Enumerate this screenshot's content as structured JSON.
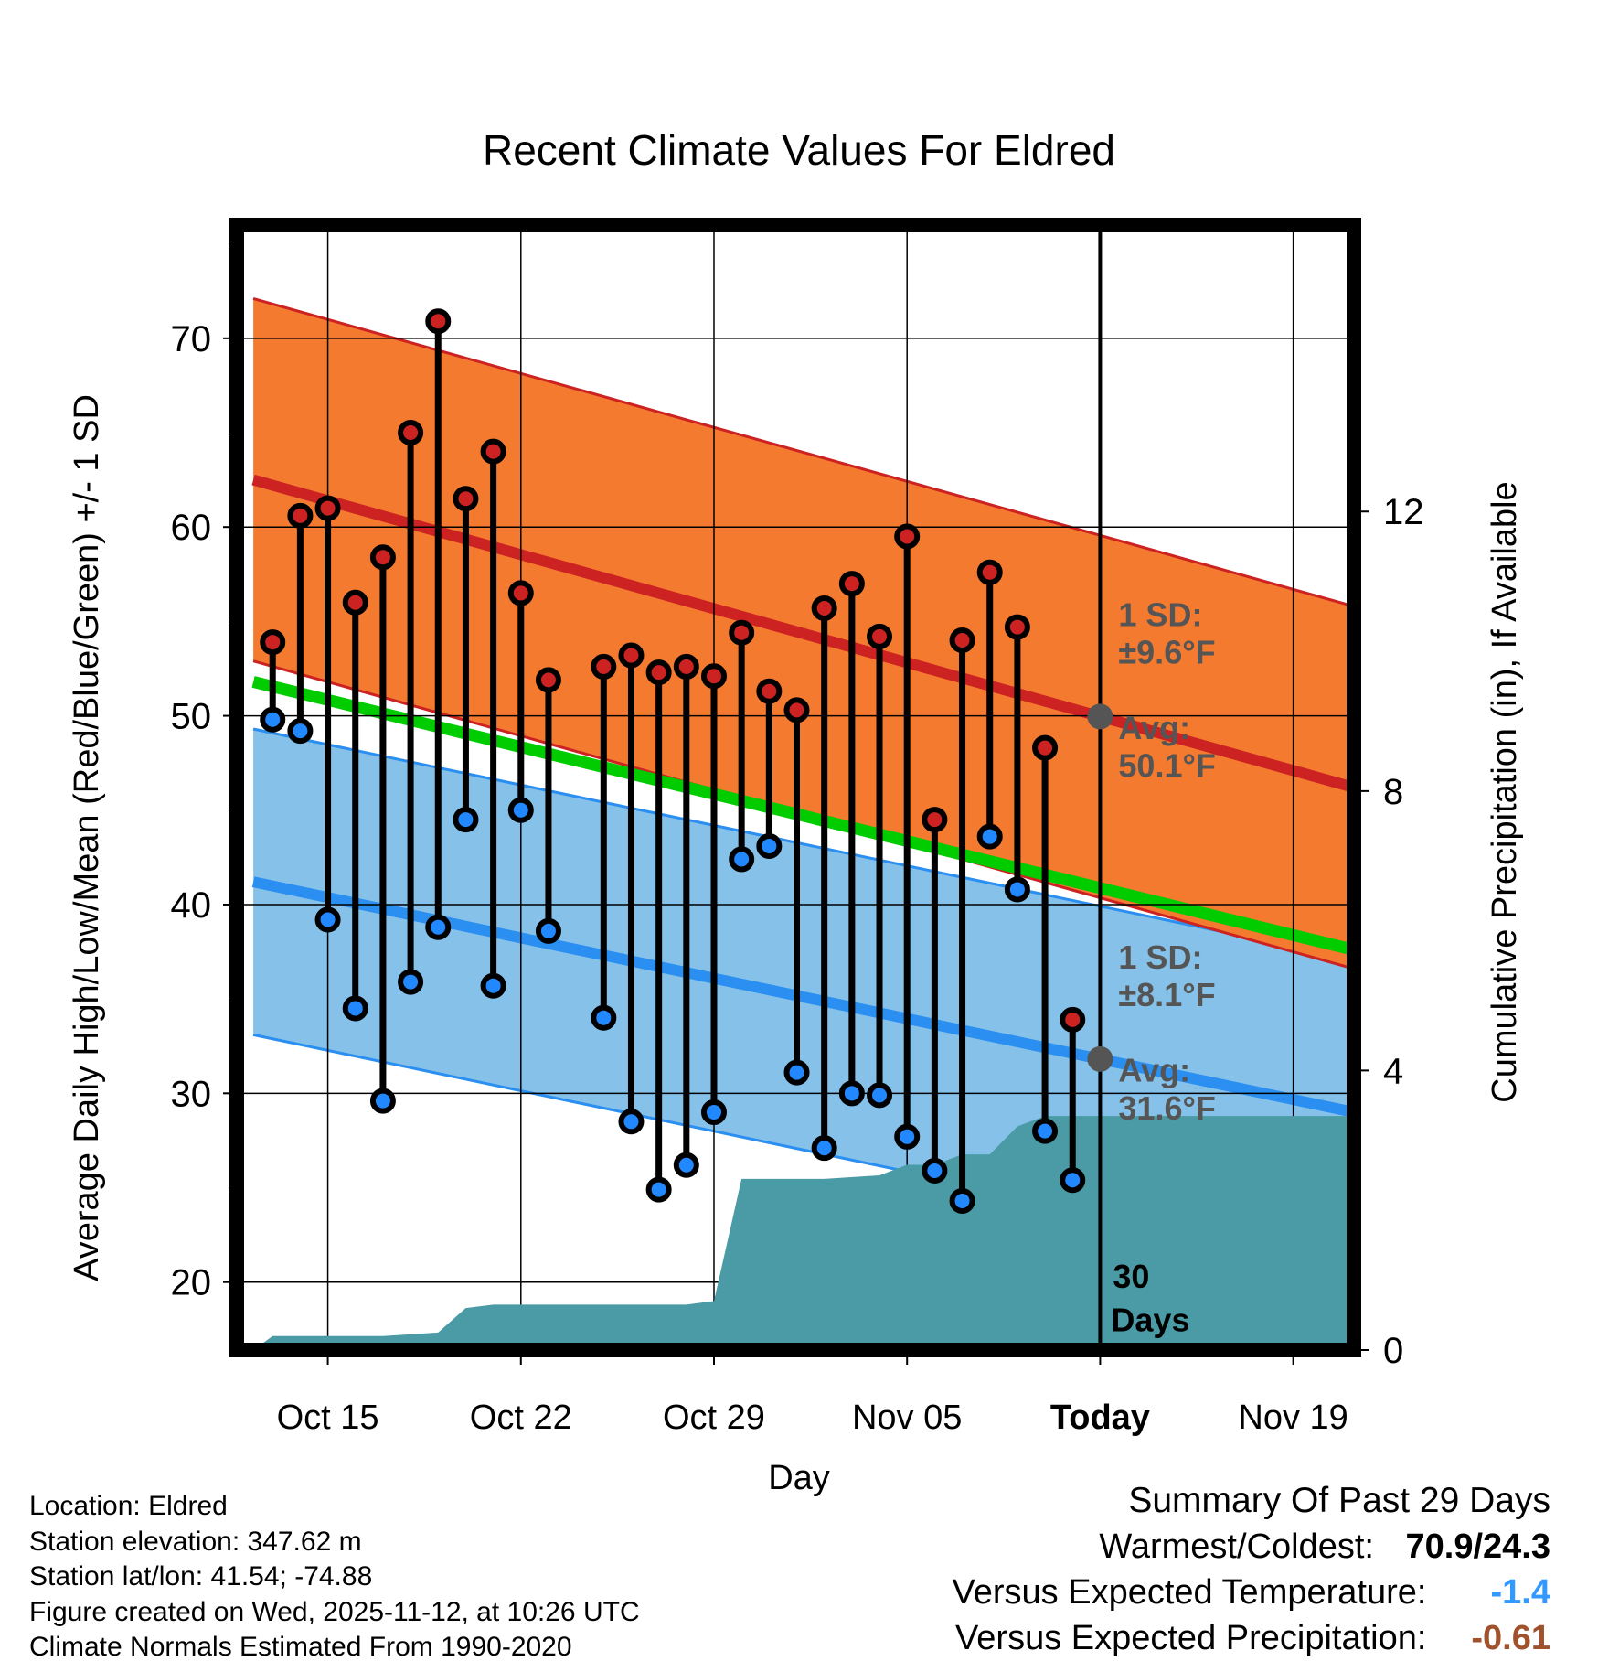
{
  "chart_data": {
    "type": "line",
    "title": "Recent Climate Values For Eldred",
    "xlabel": "Day",
    "ylabel": "Average Daily High/Low/Mean (Red/Blue/Green) +/- 1 SD",
    "y2label": "Cumulative Precipitation (in), If Available",
    "xlim": [
      -3.3,
      37.2
    ],
    "ylim": [
      16.4,
      76.0
    ],
    "y2lim": [
      0,
      16.1
    ],
    "x_ticks": [
      {
        "x": 0,
        "label": "Oct 15",
        "bold": false
      },
      {
        "x": 7,
        "label": "Oct 22",
        "bold": false
      },
      {
        "x": 14,
        "label": "Oct 29",
        "bold": false
      },
      {
        "x": 21,
        "label": "Nov 05",
        "bold": false
      },
      {
        "x": 28,
        "label": "Today",
        "bold": true
      },
      {
        "x": 35,
        "label": "Nov 19",
        "bold": false
      }
    ],
    "y_ticks": [
      20,
      30,
      40,
      50,
      60,
      70
    ],
    "y2_ticks": [
      0,
      4,
      8,
      12
    ],
    "today_x": 28,
    "normals": {
      "x_start": -2.7,
      "x_end": 37.2,
      "high_avg_start": 62.5,
      "high_avg_end": 46.2,
      "high_sd": 9.6,
      "low_avg_start": 41.2,
      "low_avg_end": 29.0,
      "low_sd": 8.1,
      "mean_avg_start": 51.8,
      "mean_avg_end": 37.6
    },
    "series": [
      {
        "name": "High",
        "color": "#cc2222",
        "values": [
          53.9,
          60.6,
          61.0,
          56.0,
          58.4,
          65.0,
          70.9,
          61.5,
          64.0,
          56.5,
          51.9,
          null,
          52.6,
          53.2,
          52.3,
          52.6,
          52.1,
          54.4,
          51.3,
          50.3,
          55.7,
          57.0,
          54.2,
          59.5,
          44.5,
          54.0,
          57.6,
          54.7,
          48.3,
          33.9
        ]
      },
      {
        "name": "Low",
        "color": "#2288ff",
        "values": [
          49.8,
          49.2,
          39.2,
          34.5,
          29.6,
          35.9,
          38.8,
          44.5,
          35.7,
          45.0,
          38.6,
          null,
          34.0,
          28.5,
          24.9,
          26.2,
          29.0,
          42.4,
          43.1,
          31.1,
          27.1,
          30.0,
          29.9,
          27.7,
          25.9,
          24.3,
          43.6,
          40.8,
          28.0,
          25.4
        ]
      }
    ],
    "day_x": [
      -2,
      -1,
      0,
      1,
      2,
      3,
      4,
      5,
      6,
      7,
      8,
      9,
      10,
      11,
      12,
      13,
      14,
      15,
      16,
      17,
      18,
      19,
      20,
      21,
      22,
      23,
      24,
      25,
      26,
      27
    ],
    "precip_cumulative": {
      "x": [
        -2.7,
        -2.0,
        2.0,
        4.0,
        5.0,
        6.0,
        7.0,
        9.0,
        13.0,
        14.0,
        15.0,
        18.0,
        20.0,
        21.0,
        22.0,
        23.0,
        24.0,
        25.0,
        26.0,
        27.0,
        28.0,
        37.2
      ],
      "values": [
        0,
        0.2,
        0.2,
        0.25,
        0.6,
        0.65,
        0.65,
        0.65,
        0.65,
        0.7,
        2.45,
        2.45,
        2.5,
        2.65,
        2.65,
        2.8,
        2.8,
        3.2,
        3.35,
        3.35,
        3.35,
        3.35
      ]
    },
    "annotations": {
      "high_sd_label": "1 SD:",
      "high_sd_value": "±9.6°F",
      "high_avg_label": "Avg:",
      "high_avg_value": "50.1°F",
      "low_sd_label": "1 SD:",
      "low_sd_value": "±8.1°F",
      "low_avg_label": "Avg:",
      "low_avg_value": "31.6°F",
      "precip_days_line1": "30",
      "precip_days_line2": "Days"
    }
  },
  "footer": {
    "location": "Location: Eldred",
    "elevation": "Station elevation: 347.62 m",
    "latlon": "Station lat/lon: 41.54; -74.88",
    "created": "Figure created on Wed, 2025-11-12, at 10:26 UTC",
    "normals": "Climate Normals Estimated From 1990-2020"
  },
  "summary": {
    "title": "Summary Of Past 29 Days",
    "warmest_label": "Warmest/Coldest:",
    "warmest_value": "70.9/24.3",
    "temp_label": "Versus Expected Temperature:",
    "temp_value": "-1.4",
    "temp_color": "#3399ff",
    "precip_label": "Versus Expected Precipitation:",
    "precip_value": "-0.61",
    "precip_color": "#a0522d"
  },
  "colors": {
    "high_band": "#f47a30",
    "high_line": "#cc2222",
    "low_band": "#85c1e9",
    "low_line": "#2a8ff0",
    "mean_line": "#00cc00",
    "precip": "#4a9ba5",
    "avg_marker": "#555555"
  }
}
